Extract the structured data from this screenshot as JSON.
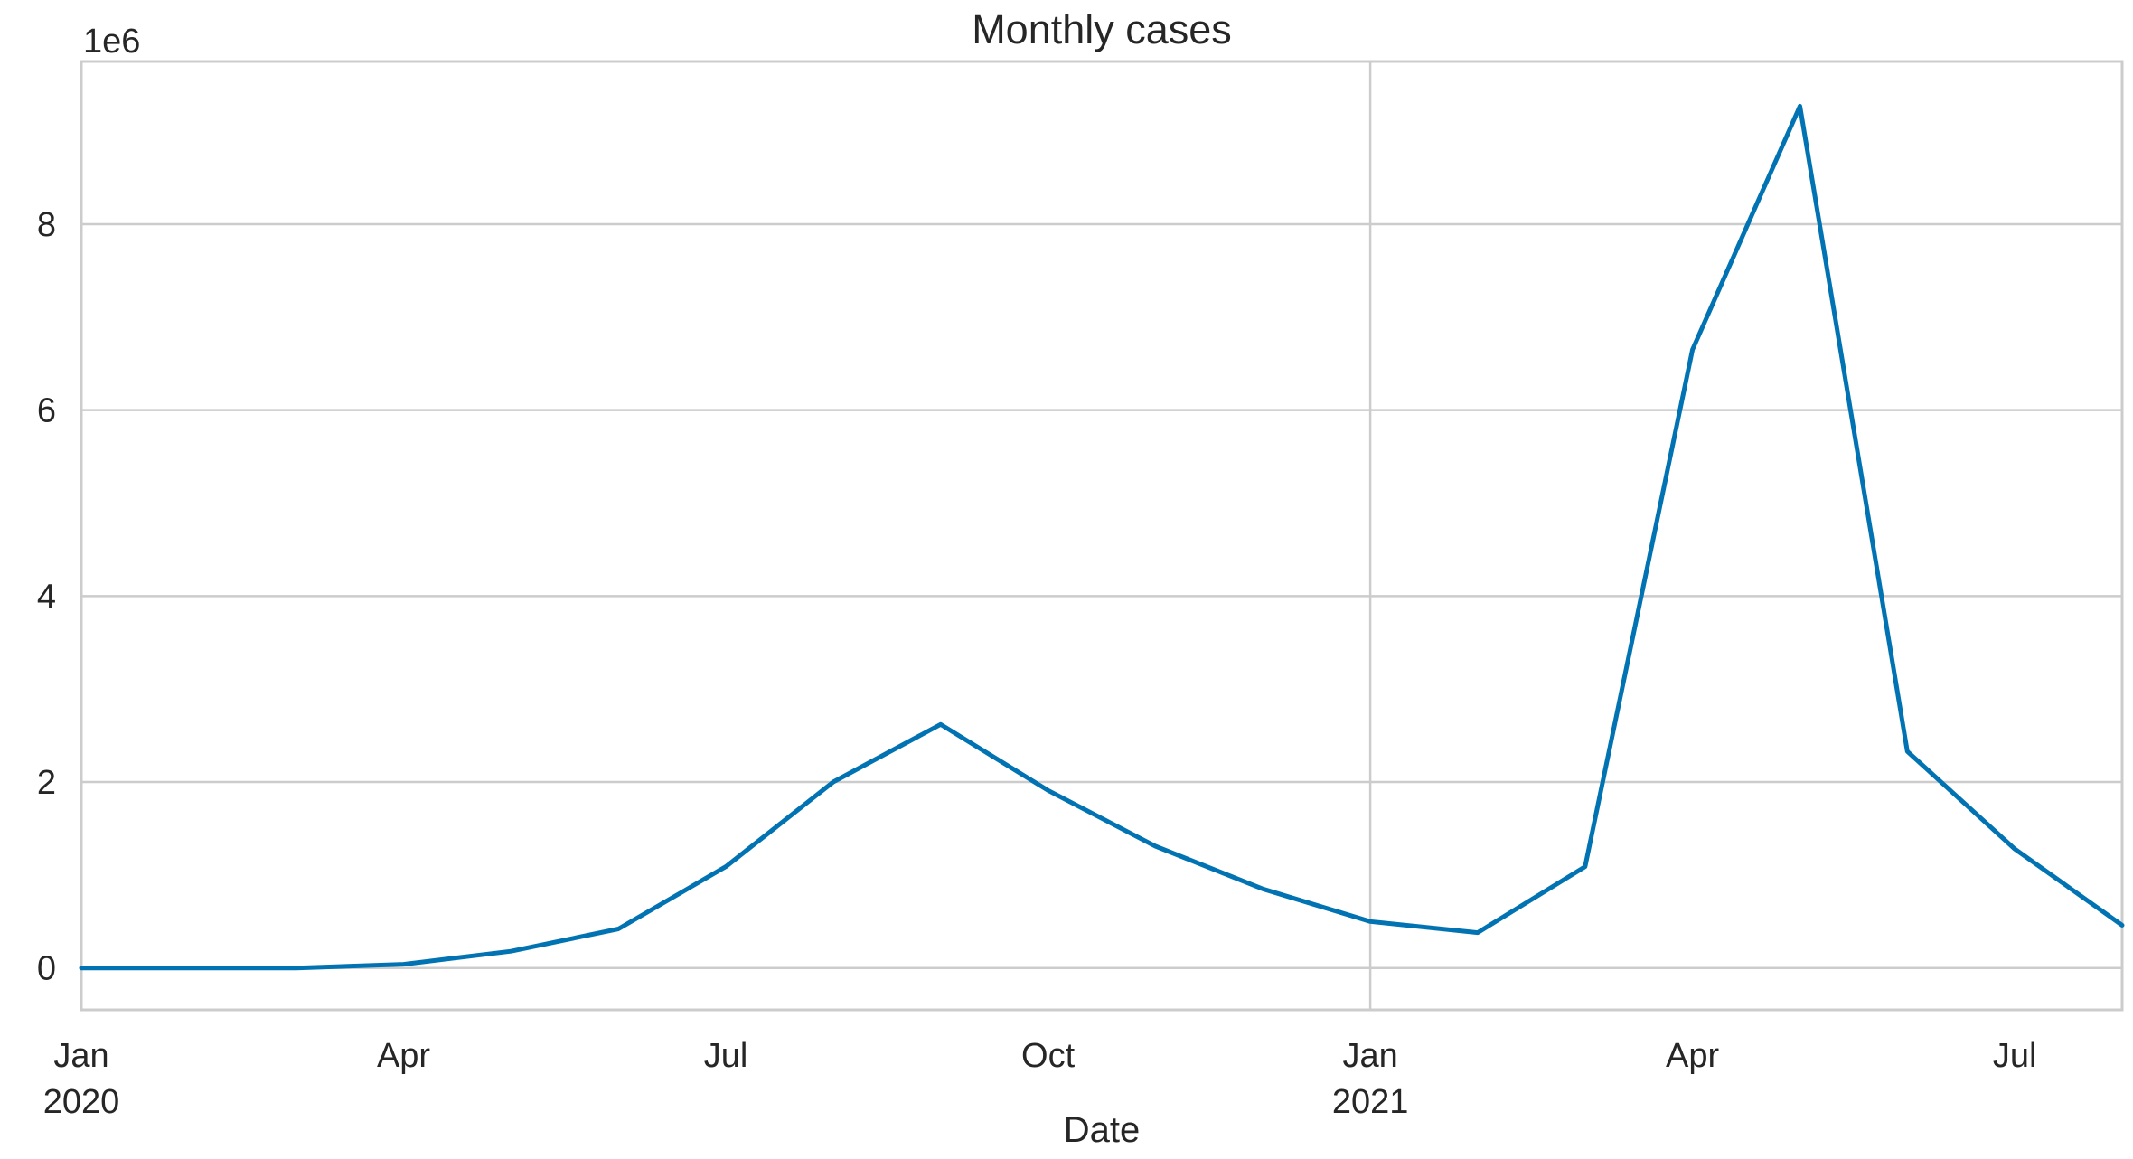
{
  "chart_data": {
    "type": "line",
    "title": "Monthly cases",
    "xlabel": "Date",
    "ylabel": "",
    "y_offset_label": "1e6",
    "x_tick_labels": [
      {
        "date": "2020-01",
        "line1": "Jan",
        "line2": "2020"
      },
      {
        "date": "2020-04",
        "line1": "Apr",
        "line2": ""
      },
      {
        "date": "2020-07",
        "line1": "Jul",
        "line2": ""
      },
      {
        "date": "2020-10",
        "line1": "Oct",
        "line2": ""
      },
      {
        "date": "2021-01",
        "line1": "Jan",
        "line2": "2021"
      },
      {
        "date": "2021-04",
        "line1": "Apr",
        "line2": ""
      },
      {
        "date": "2021-07",
        "line1": "Jul",
        "line2": ""
      }
    ],
    "y_ticks": [
      0,
      2,
      4,
      6,
      8
    ],
    "ylim": [
      -0.45,
      9.75
    ],
    "xlim": [
      "2020-01",
      "2021-08"
    ],
    "grid": true,
    "series": [
      {
        "color": "#0173b2",
        "x": [
          "2020-01",
          "2020-02",
          "2020-03",
          "2020-04",
          "2020-05",
          "2020-06",
          "2020-07",
          "2020-08",
          "2020-09",
          "2020-10",
          "2020-11",
          "2020-12",
          "2021-01",
          "2021-02",
          "2021-03",
          "2021-04",
          "2021-05",
          "2021-06",
          "2021-07",
          "2021-08"
        ],
        "values": [
          0.0,
          0.0,
          0.0,
          0.04,
          0.18,
          0.42,
          1.09,
          2.0,
          2.62,
          1.91,
          1.31,
          0.85,
          0.5,
          0.38,
          1.09,
          6.65,
          9.27,
          2.33,
          1.28,
          0.46
        ]
      }
    ]
  }
}
